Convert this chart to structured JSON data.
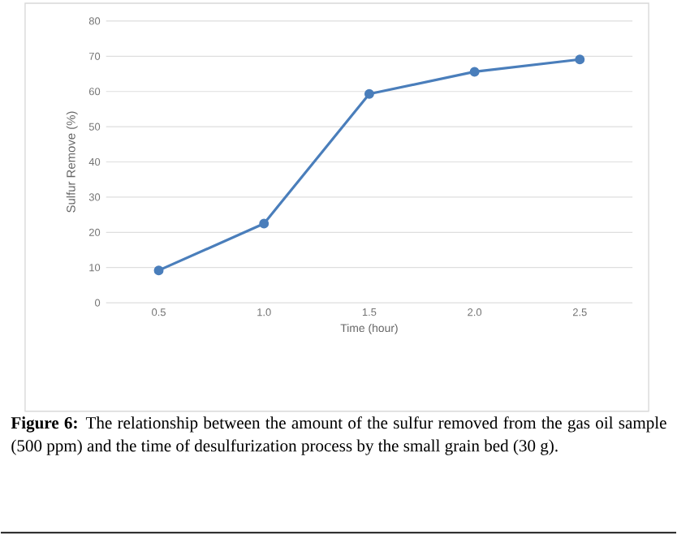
{
  "chart_data": {
    "type": "line",
    "xlabel": "Time (hour)",
    "ylabel": "Sulfur Remove (%)",
    "categories": [
      "0.5",
      "1.0",
      "1.5",
      "2.0",
      "2.5"
    ],
    "series": [
      {
        "color": "#4a7ebb",
        "values": [
          9.2,
          22.5,
          59.3,
          65.6,
          69.1
        ]
      }
    ],
    "ylim": [
      0,
      80
    ],
    "yticks": [
      0,
      10,
      20,
      30,
      40,
      50,
      60,
      70,
      80
    ],
    "grid": "y",
    "marker": "circle",
    "line_style": "solid",
    "annotations": [
      "**Figure 6:** The relationship between the amount of the sulfur removed from the gas oil sample (500 ppm) and the time of desulfurization process by the small grain bed (30 g)."
    ]
  }
}
